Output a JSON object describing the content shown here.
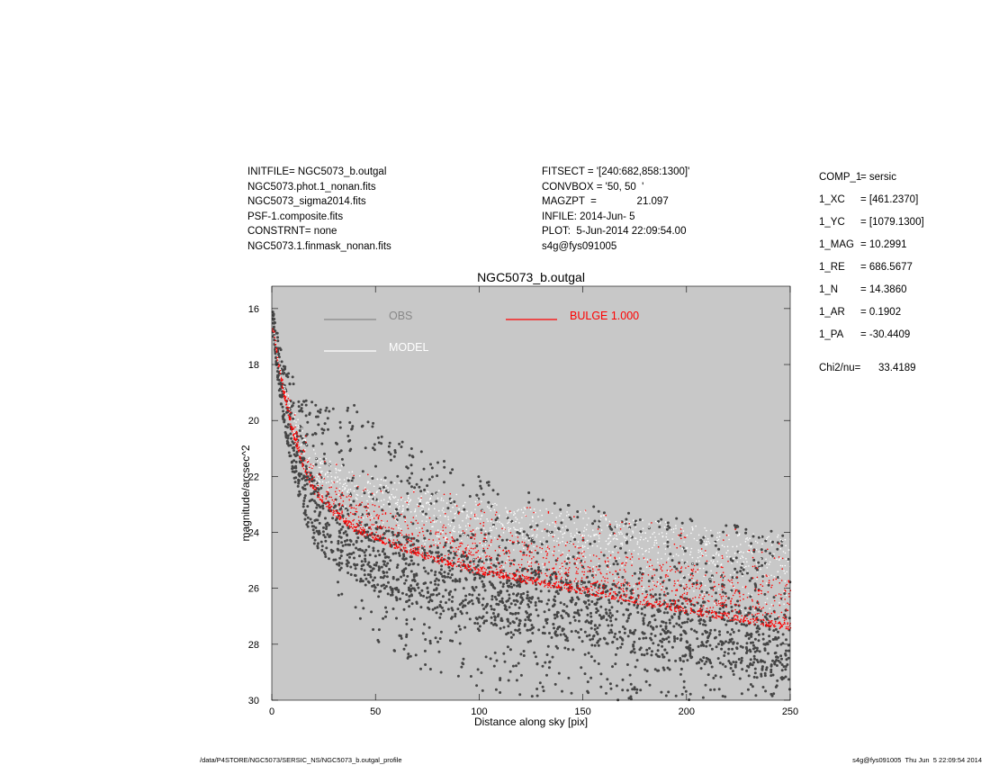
{
  "header_left": [
    "INITFILE= NGC5073_b.outgal",
    "NGC5073.phot.1_nonan.fits",
    "NGC5073_sigma2014.fits",
    "PSF-1.composite.fits",
    "CONSTRNT= none",
    "NGC5073.1.finmask_nonan.fits"
  ],
  "header_mid": [
    "FITSECT = '[240:682,858:1300]'",
    "CONVBOX = '50, 50  '",
    "MAGZPT  =              21.097",
    "INFILE: 2014-Jun- 5",
    "PLOT:  5-Jun-2014 22:09:54.00",
    "s4g@fys091005"
  ],
  "params": [
    {
      "key": "COMP_1",
      "val": "= sersic"
    },
    {
      "key": "1_XC",
      "val": "= [461.2370]"
    },
    {
      "key": "1_YC",
      "val": "= [1079.1300]"
    },
    {
      "key": "1_MAG",
      "val": "= 10.2991"
    },
    {
      "key": "1_RE",
      "val": "= 686.5677"
    },
    {
      "key": "1_N",
      "val": "= 14.3860"
    },
    {
      "key": "1_AR",
      "val": "= 0.1902"
    },
    {
      "key": "1_PA",
      "val": "= -30.4409"
    }
  ],
  "chi": {
    "key": "Chi2/nu=",
    "val": "33.4189"
  },
  "footer": {
    "left": "/data/P4STORE/NGC5073/SERSIC_NS/NGC5073_b.outgal_profile",
    "right": "s4g@fys091005  Thu Jun  5 22:09:54 2014"
  },
  "chart_data": {
    "type": "scatter",
    "title": "NGC5073_b.outgal",
    "xlabel": "Distance along sky [pix]",
    "ylabel": "magnitude/arcsec^2",
    "xlim": [
      0,
      250
    ],
    "ylim": [
      30,
      15.2
    ],
    "y_inverted": true,
    "xticks": [
      0,
      50,
      100,
      150,
      200,
      250
    ],
    "yticks": [
      16,
      18,
      20,
      22,
      24,
      26,
      28,
      30
    ],
    "grid": false,
    "background": "#c8c8c8",
    "series": [
      {
        "name": "OBS",
        "color": "#888888",
        "marker_color": "#454545",
        "envelope_x": [
          1,
          3,
          6,
          10,
          15,
          20,
          30,
          40,
          50,
          60,
          80,
          100,
          120,
          150,
          180,
          200,
          220,
          250
        ],
        "envelope_upper": [
          16.0,
          17.0,
          17.8,
          18.4,
          18.9,
          19.2,
          19.3,
          19.4,
          19.8,
          20.5,
          21.3,
          22.0,
          22.5,
          23.0,
          23.3,
          23.5,
          23.7,
          24.0
        ],
        "envelope_lower": [
          17.0,
          18.6,
          20.2,
          21.8,
          23.3,
          24.4,
          26.0,
          27.2,
          28.0,
          28.6,
          29.3,
          29.8,
          30.0,
          30.0,
          30.0,
          30.0,
          30.0,
          30.0
        ]
      },
      {
        "name": "MODEL",
        "color": "#ffffff",
        "lower_x": [
          1,
          3,
          6,
          10,
          15,
          20,
          30,
          40,
          60,
          80,
          100,
          150,
          200,
          250
        ],
        "lower_y": [
          16.8,
          17.8,
          18.7,
          19.5,
          20.3,
          21.0,
          21.5,
          21.8,
          22.2,
          22.5,
          22.8,
          23.2,
          23.7,
          24.1
        ],
        "upper_x": [
          1,
          3,
          6,
          10,
          15,
          20,
          30,
          40,
          60,
          80,
          100,
          150,
          200,
          250
        ],
        "upper_y": [
          16.8,
          18.0,
          19.2,
          20.5,
          21.7,
          22.6,
          23.4,
          24.0,
          24.6,
          25.1,
          25.5,
          26.2,
          26.9,
          27.5
        ]
      },
      {
        "name": "BULGE  1.000",
        "color": "#ff0000",
        "lower_x": [
          1,
          3,
          6,
          10,
          15,
          20,
          30,
          40,
          60,
          80,
          100,
          150,
          200,
          250
        ],
        "lower_y": [
          16.8,
          18.0,
          19.2,
          20.5,
          21.7,
          22.6,
          23.4,
          24.0,
          24.6,
          25.1,
          25.5,
          26.2,
          26.9,
          27.5
        ],
        "upper_x": [
          1,
          3,
          6,
          10,
          15,
          20,
          30,
          40,
          60,
          80,
          100,
          150,
          200,
          250
        ],
        "upper_y": [
          16.8,
          17.8,
          18.7,
          19.5,
          20.3,
          21.0,
          21.5,
          21.8,
          22.2,
          22.5,
          22.8,
          23.2,
          23.7,
          24.1
        ]
      }
    ]
  }
}
